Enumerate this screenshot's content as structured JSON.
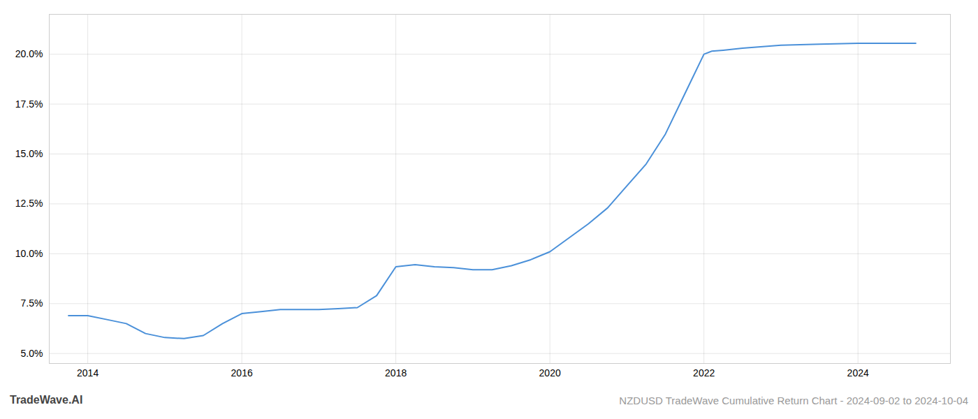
{
  "chart_data": {
    "type": "line",
    "title": "NZDUSD TradeWave Cumulative Return Chart - 2024-09-02 to 2024-10-04",
    "annotations": [
      "TradeWave.AI"
    ],
    "color": "#4a90d9",
    "grid": true,
    "x": [
      2013.75,
      2014.0,
      2014.25,
      2014.5,
      2014.75,
      2015.0,
      2015.25,
      2015.5,
      2015.75,
      2016.0,
      2016.25,
      2016.5,
      2016.75,
      2017.0,
      2017.25,
      2017.5,
      2017.75,
      2018.0,
      2018.25,
      2018.5,
      2018.75,
      2019.0,
      2019.25,
      2019.5,
      2019.75,
      2020.0,
      2020.25,
      2020.5,
      2020.75,
      2021.0,
      2021.25,
      2021.5,
      2021.75,
      2022.0,
      2022.1,
      2022.25,
      2022.5,
      2023.0,
      2023.5,
      2024.0,
      2024.75
    ],
    "values": [
      6.9,
      6.9,
      6.7,
      6.5,
      6.0,
      5.8,
      5.75,
      5.9,
      6.5,
      7.0,
      7.1,
      7.2,
      7.2,
      7.2,
      7.25,
      7.3,
      7.9,
      9.35,
      9.45,
      9.35,
      9.3,
      9.2,
      9.2,
      9.4,
      9.7,
      10.1,
      10.8,
      11.5,
      12.3,
      13.4,
      14.5,
      16.0,
      18.0,
      20.0,
      20.15,
      20.2,
      20.3,
      20.45,
      20.5,
      20.55,
      20.55
    ],
    "xlim": [
      2013.5,
      2025.2
    ],
    "ylim": [
      4.5,
      22.0
    ],
    "xticks": [
      2014,
      2016,
      2018,
      2020,
      2022,
      2024
    ],
    "yticks": [
      {
        "value": 5.0,
        "label": "5.0%"
      },
      {
        "value": 7.5,
        "label": "7.5%"
      },
      {
        "value": 10.0,
        "label": "10.0%"
      },
      {
        "value": 12.5,
        "label": "12.5%"
      },
      {
        "value": 15.0,
        "label": "15.0%"
      },
      {
        "value": 17.5,
        "label": "17.5%"
      },
      {
        "value": 20.0,
        "label": "20.0%"
      }
    ]
  }
}
